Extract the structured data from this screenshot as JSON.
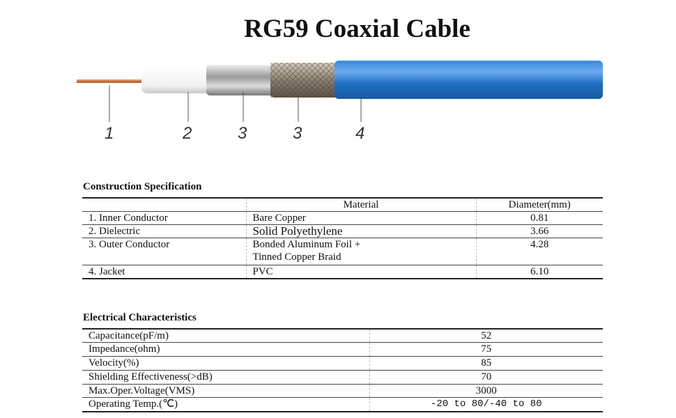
{
  "title": "RG59 Coaxial Cable",
  "diagram": {
    "labels": [
      "1",
      "2",
      "3",
      "3",
      "4"
    ],
    "colors": {
      "conductor": "#c8703a",
      "jacket": "#1f6fc2"
    }
  },
  "construction": {
    "heading": "Construction Specification",
    "columns": [
      "",
      "Material",
      "Diameter(mm)"
    ],
    "rows": [
      {
        "part": "1. Inner Conductor",
        "material": "Bare Copper",
        "material2": "",
        "diameter": "0.81"
      },
      {
        "part": "2. Dielectric",
        "material": "Solid Polyethylene",
        "material2": "",
        "diameter": "3.66"
      },
      {
        "part": "3. Outer Conductor",
        "material": "Bonded Aluminum Foil +",
        "material2": "Tinned Copper Braid",
        "diameter": "4.28"
      },
      {
        "part": "4. Jacket",
        "material": "PVC",
        "material2": "",
        "diameter": "6.10"
      }
    ]
  },
  "electrical": {
    "heading": "Electrical Characteristics",
    "rows": [
      {
        "name": "Capacitance(pF/m)",
        "value": "52"
      },
      {
        "name": "Impedance(ohm)",
        "value": "75"
      },
      {
        "name": "Velocity(%)",
        "value": "85"
      },
      {
        "name": "Shielding Effectiveness(>dB)",
        "value": "70"
      },
      {
        "name": "Max.Oper.Voltage(VMS)",
        "value": "3000"
      },
      {
        "name": "Operating Temp.(℃)",
        "value": "-20 to 80/-40 to 80"
      }
    ]
  }
}
